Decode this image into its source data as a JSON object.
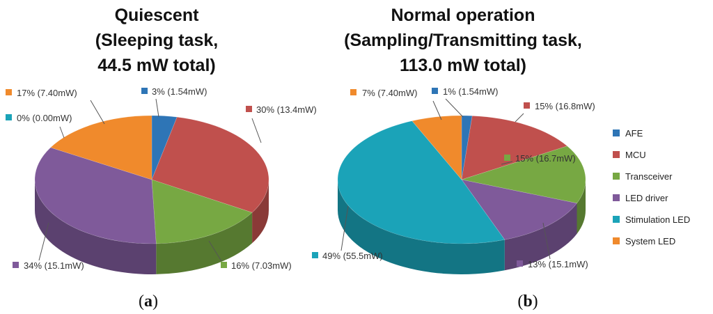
{
  "chart_data": [
    {
      "type": "pie",
      "title_lines": [
        "Quiescent",
        "(Sleeping task,",
        "44.5 mW total)"
      ],
      "panel_label": "a",
      "total_mw": 44.5,
      "slices": [
        {
          "name": "AFE",
          "percent": 3,
          "value_mw": 1.54,
          "label": "3% (1.54mW)"
        },
        {
          "name": "MCU",
          "percent": 30,
          "value_mw": 13.4,
          "label": "30% (13.4mW)"
        },
        {
          "name": "Transceiver",
          "percent": 16,
          "value_mw": 7.03,
          "label": "16% (7.03mW)"
        },
        {
          "name": "LED driver",
          "percent": 34,
          "value_mw": 15.1,
          "label": "34% (15.1mW)"
        },
        {
          "name": "Stimulation LED",
          "percent": 0,
          "value_mw": 0.0,
          "label": "0% (0.00mW)"
        },
        {
          "name": "System LED",
          "percent": 17,
          "value_mw": 7.4,
          "label": "17% (7.40mW)"
        }
      ]
    },
    {
      "type": "pie",
      "title_lines": [
        "Normal operation",
        "(Sampling/Transmitting task,",
        "113.0 mW total)"
      ],
      "panel_label": "b",
      "total_mw": 113.0,
      "slices": [
        {
          "name": "AFE",
          "percent": 1,
          "value_mw": 1.54,
          "label": "1% (1.54mW)"
        },
        {
          "name": "MCU",
          "percent": 15,
          "value_mw": 16.8,
          "label": "15% (16.8mW)"
        },
        {
          "name": "Transceiver",
          "percent": 15,
          "value_mw": 16.7,
          "label": "15% (16.7mW)"
        },
        {
          "name": "LED driver",
          "percent": 13,
          "value_mw": 15.1,
          "label": "13% (15.1mW)"
        },
        {
          "name": "Stimulation LED",
          "percent": 49,
          "value_mw": 55.5,
          "label": "49% (55.5mW)"
        },
        {
          "name": "System LED",
          "percent": 7,
          "value_mw": 7.4,
          "label": "7% (7.40mW)"
        }
      ]
    }
  ],
  "legend": [
    {
      "name": "AFE",
      "color": "#2e75b6"
    },
    {
      "name": "MCU",
      "color": "#c0504d"
    },
    {
      "name": "Transceiver",
      "color": "#77a843"
    },
    {
      "name": "LED driver",
      "color": "#7f5a9a"
    },
    {
      "name": "Stimulation LED",
      "color": "#1ba3b8"
    },
    {
      "name": "System LED",
      "color": "#f08a2c"
    }
  ]
}
